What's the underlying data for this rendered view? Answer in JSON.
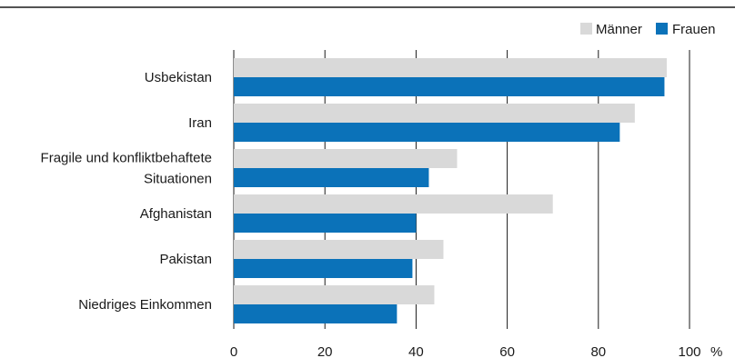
{
  "chart_data": {
    "type": "bar",
    "orientation": "horizontal",
    "title": "",
    "xlabel": "",
    "ylabel": "",
    "unit": "%",
    "xlim": [
      0,
      100
    ],
    "xticks": [
      0,
      20,
      40,
      60,
      80,
      100
    ],
    "grid": true,
    "legend_position": "top-right",
    "categories": [
      "Usbekistan",
      "Iran",
      "Fragile und konfliktbehaftete Situationen",
      "Afghanistan",
      "Pakistan",
      "Niedriges Einkommen"
    ],
    "category_lines": [
      [
        "Usbekistan"
      ],
      [
        "Iran"
      ],
      [
        "Fragile und konfliktbehaftete",
        "Situationen"
      ],
      [
        "Afghanistan"
      ],
      [
        "Pakistan"
      ],
      [
        "Niedriges Einkommen"
      ]
    ],
    "series": [
      {
        "name": "Männer",
        "color": "#d9d9d9",
        "values": [
          95,
          88,
          49,
          70,
          46,
          44
        ]
      },
      {
        "name": "Frauen",
        "color": "#0b72b9",
        "values": [
          94.5,
          84.7,
          42.8,
          40,
          39.2,
          35.8
        ]
      }
    ]
  }
}
